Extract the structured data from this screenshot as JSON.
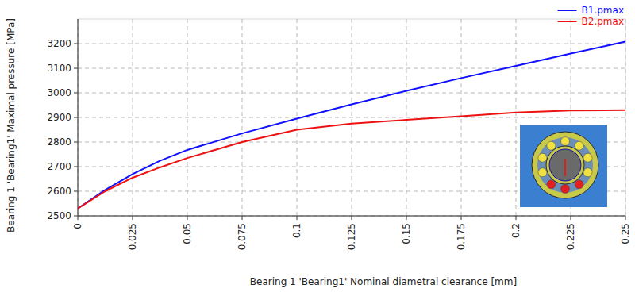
{
  "chart_data": {
    "type": "line",
    "x_label": "Bearing 1 'Bearing1' Nominal diametral clearance [mm]",
    "y_label": "Bearing 1 'Bearing1' Maximal pressure [MPa]",
    "x": [
      0,
      0.0125,
      0.025,
      0.0375,
      0.05,
      0.075,
      0.1,
      0.125,
      0.15,
      0.175,
      0.2,
      0.225,
      0.25
    ],
    "series": [
      {
        "name": "B1.pmax",
        "color": "#1010ff",
        "values": [
          2530,
          2605,
          2670,
          2724,
          2768,
          2835,
          2895,
          2953,
          3008,
          3060,
          3110,
          3160,
          3208
        ]
      },
      {
        "name": "B2.pmax",
        "color": "#ee1111",
        "values": [
          2530,
          2600,
          2655,
          2697,
          2735,
          2800,
          2850,
          2875,
          2890,
          2905,
          2920,
          2928,
          2930
        ]
      }
    ],
    "xlim": [
      0,
      0.25
    ],
    "ylim": [
      2500,
      3300
    ],
    "xticks": [
      0,
      0.025,
      0.05,
      0.075,
      0.1,
      0.125,
      0.15,
      0.175,
      0.2,
      0.225,
      0.25
    ],
    "yticks": [
      2500,
      2600,
      2700,
      2800,
      2900,
      3000,
      3100,
      3200
    ],
    "grid": true,
    "legend": "upper right"
  }
}
